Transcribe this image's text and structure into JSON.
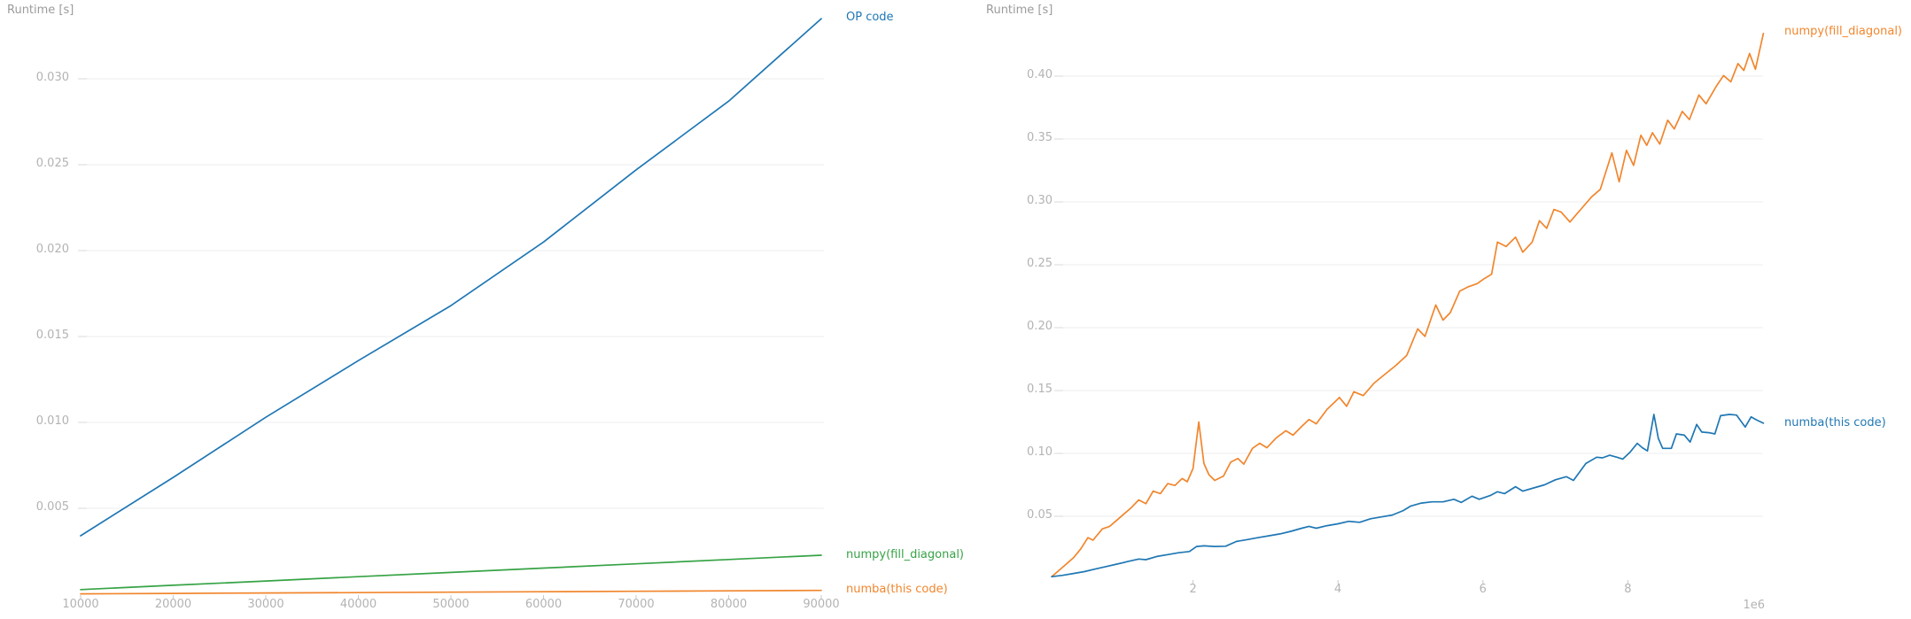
{
  "page": {
    "background": "#ffffff"
  },
  "palette": {
    "blue": "#1f77b4",
    "orange": "#f1862d",
    "green": "#36a345",
    "grid": "#eeeeee",
    "grid_stub": "#d9d9d9",
    "tick_mark": "#c9c9c9",
    "tick_text": "#b3b3b3",
    "axis_title_text": "#9b9b9b"
  },
  "chart_data": [
    {
      "type": "line",
      "title": "",
      "ylabel": "Runtime [s]",
      "xlabel": "",
      "legend_position": "right-of-line-ends",
      "grid": "horizontal-only",
      "xlim": [
        9700,
        90300
      ],
      "ylim": [
        0,
        0.0346
      ],
      "xtick_labels": [
        "10000",
        "20000",
        "30000",
        "40000",
        "50000",
        "60000",
        "70000",
        "80000",
        "90000"
      ],
      "ytick_labels": [
        "0.005",
        "0.010",
        "0.015",
        "0.020",
        "0.025",
        "0.030"
      ],
      "series": [
        {
          "name": "OP code",
          "color": "#1f77b4",
          "x": [
            10000,
            20000,
            30000,
            40000,
            50000,
            60000,
            70000,
            80000,
            90000
          ],
          "y": [
            0.0034,
            0.0068,
            0.0103,
            0.0136,
            0.0168,
            0.0205,
            0.0247,
            0.0287,
            0.0335
          ]
        },
        {
          "name": "numpy(fill_diagonal)",
          "color": "#36a345",
          "x": [
            10000,
            20000,
            30000,
            40000,
            50000,
            60000,
            70000,
            80000,
            90000
          ],
          "y": [
            0.00027,
            0.00052,
            0.00077,
            0.00102,
            0.00127,
            0.00152,
            0.00177,
            0.00202,
            0.00227
          ]
        },
        {
          "name": "numba(this code)",
          "color": "#f1862d",
          "x": [
            10000,
            20000,
            30000,
            40000,
            50000,
            60000,
            70000,
            80000,
            90000
          ],
          "y": [
            2e-05,
            4.5e-05,
            7e-05,
            9.5e-05,
            0.00012,
            0.000145,
            0.00017,
            0.000195,
            0.00022
          ]
        }
      ]
    },
    {
      "type": "line",
      "title": "",
      "ylabel": "Runtime [s]",
      "xlabel": "",
      "x_unit": 1000000,
      "x_offset_label": "1e6",
      "legend_position": "right-of-line-ends",
      "grid": "horizontal-only",
      "xlim": [
        0,
        9870000
      ],
      "ylim": [
        0,
        0.46
      ],
      "xtick_labels": [
        "2",
        "4",
        "6",
        "8"
      ],
      "ytick_labels": [
        "0.05",
        "0.10",
        "0.15",
        "0.20",
        "0.25",
        "0.30",
        "0.35",
        "0.40"
      ],
      "series": [
        {
          "name": "numpy(fill_diagonal)",
          "color": "#f1862d",
          "points": [
            [
              0.05,
              0.002
            ],
            [
              0.15,
              0.007
            ],
            [
              0.25,
              0.012
            ],
            [
              0.35,
              0.017
            ],
            [
              0.45,
              0.024
            ],
            [
              0.55,
              0.033
            ],
            [
              0.62,
              0.031
            ],
            [
              0.75,
              0.04
            ],
            [
              0.85,
              0.042
            ],
            [
              0.95,
              0.047
            ],
            [
              1.05,
              0.052
            ],
            [
              1.15,
              0.057
            ],
            [
              1.25,
              0.063
            ],
            [
              1.35,
              0.06
            ],
            [
              1.45,
              0.07
            ],
            [
              1.55,
              0.068
            ],
            [
              1.65,
              0.076
            ],
            [
              1.75,
              0.0745
            ],
            [
              1.85,
              0.08
            ],
            [
              1.92,
              0.0775
            ],
            [
              2.0,
              0.088
            ],
            [
              2.08,
              0.125
            ],
            [
              2.15,
              0.092
            ],
            [
              2.22,
              0.083
            ],
            [
              2.3,
              0.0785
            ],
            [
              2.42,
              0.082
            ],
            [
              2.52,
              0.093
            ],
            [
              2.62,
              0.096
            ],
            [
              2.7,
              0.0915
            ],
            [
              2.82,
              0.104
            ],
            [
              2.92,
              0.108
            ],
            [
              3.02,
              0.1045
            ],
            [
              3.15,
              0.1125
            ],
            [
              3.28,
              0.118
            ],
            [
              3.38,
              0.1145
            ],
            [
              3.5,
              0.1215
            ],
            [
              3.6,
              0.127
            ],
            [
              3.7,
              0.1235
            ],
            [
              3.85,
              0.135
            ],
            [
              3.95,
              0.1405
            ],
            [
              4.02,
              0.1445
            ],
            [
              4.12,
              0.1375
            ],
            [
              4.22,
              0.149
            ],
            [
              4.35,
              0.146
            ],
            [
              4.5,
              0.156
            ],
            [
              4.65,
              0.163
            ],
            [
              4.8,
              0.17
            ],
            [
              4.95,
              0.178
            ],
            [
              5.1,
              0.199
            ],
            [
              5.2,
              0.193
            ],
            [
              5.35,
              0.218
            ],
            [
              5.45,
              0.206
            ],
            [
              5.55,
              0.212
            ],
            [
              5.68,
              0.229
            ],
            [
              5.8,
              0.2325
            ],
            [
              5.92,
              0.235
            ],
            [
              6.02,
              0.239
            ],
            [
              6.12,
              0.2425
            ],
            [
              6.2,
              0.268
            ],
            [
              6.32,
              0.2645
            ],
            [
              6.45,
              0.272
            ],
            [
              6.55,
              0.26
            ],
            [
              6.68,
              0.268
            ],
            [
              6.78,
              0.285
            ],
            [
              6.88,
              0.279
            ],
            [
              6.98,
              0.294
            ],
            [
              7.08,
              0.292
            ],
            [
              7.2,
              0.284
            ],
            [
              7.35,
              0.294
            ],
            [
              7.5,
              0.304
            ],
            [
              7.62,
              0.31
            ],
            [
              7.78,
              0.339
            ],
            [
              7.88,
              0.316
            ],
            [
              7.98,
              0.341
            ],
            [
              8.08,
              0.329
            ],
            [
              8.18,
              0.353
            ],
            [
              8.26,
              0.345
            ],
            [
              8.34,
              0.355
            ],
            [
              8.44,
              0.346
            ],
            [
              8.55,
              0.365
            ],
            [
              8.64,
              0.358
            ],
            [
              8.75,
              0.372
            ],
            [
              8.85,
              0.3655
            ],
            [
              8.98,
              0.385
            ],
            [
              9.08,
              0.378
            ],
            [
              9.22,
              0.392
            ],
            [
              9.32,
              0.4005
            ],
            [
              9.42,
              0.3955
            ],
            [
              9.52,
              0.41
            ],
            [
              9.6,
              0.4045
            ],
            [
              9.68,
              0.418
            ],
            [
              9.76,
              0.4055
            ],
            [
              9.87,
              0.434
            ]
          ]
        },
        {
          "name": "numba(this code)",
          "color": "#1f77b4",
          "points": [
            [
              0.05,
              0.002
            ],
            [
              0.2,
              0.003
            ],
            [
              0.35,
              0.0045
            ],
            [
              0.5,
              0.006
            ],
            [
              0.65,
              0.008
            ],
            [
              0.8,
              0.01
            ],
            [
              0.95,
              0.012
            ],
            [
              1.1,
              0.014
            ],
            [
              1.25,
              0.016
            ],
            [
              1.35,
              0.0155
            ],
            [
              1.5,
              0.018
            ],
            [
              1.65,
              0.0195
            ],
            [
              1.8,
              0.021
            ],
            [
              1.95,
              0.022
            ],
            [
              2.05,
              0.026
            ],
            [
              2.15,
              0.0265
            ],
            [
              2.3,
              0.026
            ],
            [
              2.45,
              0.0262
            ],
            [
              2.6,
              0.03
            ],
            [
              2.75,
              0.0315
            ],
            [
              2.9,
              0.033
            ],
            [
              3.05,
              0.0345
            ],
            [
              3.2,
              0.036
            ],
            [
              3.35,
              0.038
            ],
            [
              3.5,
              0.0405
            ],
            [
              3.6,
              0.042
            ],
            [
              3.7,
              0.0405
            ],
            [
              3.85,
              0.0425
            ],
            [
              4.0,
              0.044
            ],
            [
              4.15,
              0.046
            ],
            [
              4.3,
              0.0452
            ],
            [
              4.45,
              0.048
            ],
            [
              4.6,
              0.0495
            ],
            [
              4.75,
              0.051
            ],
            [
              4.9,
              0.0545
            ],
            [
              5.0,
              0.058
            ],
            [
              5.15,
              0.0605
            ],
            [
              5.3,
              0.0615
            ],
            [
              5.45,
              0.0615
            ],
            [
              5.6,
              0.0635
            ],
            [
              5.7,
              0.061
            ],
            [
              5.85,
              0.066
            ],
            [
              5.95,
              0.0635
            ],
            [
              6.1,
              0.0665
            ],
            [
              6.2,
              0.0695
            ],
            [
              6.3,
              0.068
            ],
            [
              6.45,
              0.0735
            ],
            [
              6.55,
              0.07
            ],
            [
              6.7,
              0.0725
            ],
            [
              6.85,
              0.075
            ],
            [
              7.0,
              0.079
            ],
            [
              7.15,
              0.0815
            ],
            [
              7.25,
              0.0785
            ],
            [
              7.42,
              0.092
            ],
            [
              7.57,
              0.097
            ],
            [
              7.65,
              0.0965
            ],
            [
              7.75,
              0.0985
            ],
            [
              7.85,
              0.097
            ],
            [
              7.93,
              0.0955
            ],
            [
              8.03,
              0.101
            ],
            [
              8.13,
              0.108
            ],
            [
              8.2,
              0.1045
            ],
            [
              8.27,
              0.102
            ],
            [
              8.36,
              0.131
            ],
            [
              8.42,
              0.112
            ],
            [
              8.48,
              0.104
            ],
            [
              8.6,
              0.104
            ],
            [
              8.67,
              0.1155
            ],
            [
              8.78,
              0.1145
            ],
            [
              8.86,
              0.109
            ],
            [
              8.95,
              0.123
            ],
            [
              9.02,
              0.117
            ],
            [
              9.12,
              0.1165
            ],
            [
              9.2,
              0.1155
            ],
            [
              9.28,
              0.13
            ],
            [
              9.4,
              0.131
            ],
            [
              9.5,
              0.1305
            ],
            [
              9.62,
              0.121
            ],
            [
              9.7,
              0.129
            ],
            [
              9.78,
              0.1265
            ],
            [
              9.87,
              0.124
            ]
          ]
        }
      ]
    }
  ]
}
